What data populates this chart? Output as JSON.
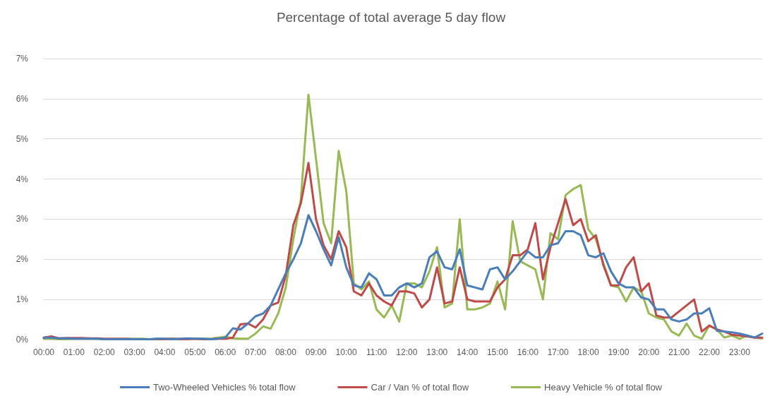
{
  "chart_data": {
    "type": "line",
    "title": "Percentage of total average 5 day flow",
    "categories": [
      "00:00",
      null,
      null,
      null,
      "01:00",
      null,
      null,
      null,
      "02:00",
      null,
      null,
      null,
      "03:00",
      null,
      null,
      null,
      "04:00",
      null,
      null,
      null,
      "05:00",
      null,
      null,
      null,
      "06:00",
      null,
      null,
      null,
      "07:00",
      null,
      null,
      null,
      "08:00",
      null,
      null,
      null,
      "09:00",
      null,
      null,
      null,
      "10:00",
      null,
      null,
      null,
      "11:00",
      null,
      null,
      null,
      "12:00",
      null,
      null,
      null,
      "13:00",
      null,
      null,
      null,
      "14:00",
      null,
      null,
      null,
      "15:00",
      null,
      null,
      null,
      "16:00",
      null,
      null,
      null,
      "17:00",
      null,
      null,
      null,
      "18:00",
      null,
      null,
      null,
      "19:00",
      null,
      null,
      null,
      "20:00",
      null,
      null,
      null,
      "21:00",
      null,
      null,
      null,
      "22:00",
      null,
      null,
      null,
      "23:00",
      null,
      null,
      null
    ],
    "series": [
      {
        "name": "Two-Wheeled Vehicles % total flow",
        "color": "#4a7ebb",
        "values": [
          0.05,
          0.05,
          0.03,
          0.03,
          0.02,
          0.02,
          0.02,
          0.02,
          0.01,
          0.01,
          0.01,
          0.01,
          0.01,
          0.01,
          0.01,
          0.02,
          0.02,
          0.01,
          0.02,
          0.03,
          0.02,
          0.02,
          0.01,
          0.02,
          0.05,
          0.28,
          0.25,
          0.4,
          0.58,
          0.65,
          0.85,
          1.25,
          1.65,
          2.0,
          2.4,
          3.1,
          2.7,
          2.25,
          1.85,
          2.55,
          1.8,
          1.35,
          1.3,
          1.65,
          1.5,
          1.1,
          1.1,
          1.3,
          1.4,
          1.3,
          1.4,
          2.05,
          2.2,
          1.8,
          1.75,
          2.25,
          1.35,
          1.3,
          1.25,
          1.75,
          1.8,
          1.5,
          1.7,
          1.95,
          2.2,
          2.05,
          2.05,
          2.35,
          2.4,
          2.7,
          2.7,
          2.6,
          2.1,
          2.05,
          2.15,
          1.7,
          1.4,
          1.3,
          1.3,
          1.05,
          1.0,
          0.75,
          0.75,
          0.5,
          0.45,
          0.5,
          0.65,
          0.65,
          0.78,
          0.22,
          0.2,
          0.18,
          0.15,
          0.1,
          0.05,
          0.15
        ]
      },
      {
        "name": "Car / Van % of total flow",
        "color": "#be4b48",
        "values": [
          0.05,
          0.08,
          0.03,
          0.04,
          0.04,
          0.04,
          0.03,
          0.03,
          0.02,
          0.02,
          0.02,
          0.02,
          0.01,
          0.01,
          0.01,
          0.01,
          0.01,
          0.02,
          0.01,
          0.01,
          0.02,
          0.01,
          0.01,
          0.02,
          0.02,
          0.05,
          0.38,
          0.4,
          0.3,
          0.5,
          0.85,
          0.92,
          1.6,
          2.85,
          3.4,
          4.4,
          3.0,
          2.35,
          2.0,
          2.7,
          2.3,
          1.2,
          1.1,
          1.4,
          1.1,
          0.95,
          0.85,
          1.2,
          1.2,
          1.15,
          0.8,
          1.0,
          1.8,
          0.9,
          0.95,
          1.8,
          1.0,
          0.95,
          0.95,
          0.95,
          1.3,
          1.5,
          2.1,
          2.1,
          2.25,
          2.9,
          1.5,
          2.3,
          2.9,
          3.5,
          2.85,
          3.0,
          2.45,
          2.6,
          1.85,
          1.35,
          1.35,
          1.8,
          2.05,
          1.2,
          1.4,
          0.6,
          0.55,
          0.55,
          0.7,
          0.85,
          1.0,
          0.2,
          0.35,
          0.25,
          0.2,
          0.12,
          0.1,
          0.08,
          0.05,
          0.05
        ]
      },
      {
        "name": "Heavy Vehicle % of total flow",
        "color": "#98b954",
        "values": [
          0.02,
          0.02,
          0.01,
          0.01,
          0.02,
          0.02,
          0.02,
          0.02,
          0.01,
          0.01,
          0.01,
          0.01,
          0.02,
          0.02,
          0.01,
          0.02,
          0.02,
          0.02,
          0.01,
          0.02,
          0.02,
          0.02,
          0.02,
          0.05,
          0.07,
          0.03,
          0.02,
          0.02,
          0.15,
          0.33,
          0.27,
          0.65,
          1.3,
          2.5,
          3.5,
          6.1,
          4.5,
          2.9,
          2.4,
          4.7,
          3.7,
          1.4,
          1.25,
          1.45,
          0.75,
          0.55,
          0.85,
          0.45,
          1.4,
          1.4,
          1.3,
          1.7,
          2.3,
          0.8,
          0.9,
          3.0,
          0.75,
          0.75,
          0.8,
          0.9,
          1.45,
          0.75,
          2.95,
          1.95,
          1.85,
          1.75,
          1.0,
          2.65,
          2.5,
          3.6,
          3.75,
          3.85,
          2.75,
          2.5,
          1.9,
          1.35,
          1.3,
          0.95,
          1.3,
          1.2,
          0.65,
          0.55,
          0.5,
          0.2,
          0.1,
          0.4,
          0.1,
          0.02,
          0.35,
          0.25,
          0.05,
          0.1,
          0.02,
          0.1,
          0.05,
          0.03
        ]
      }
    ],
    "ylim": [
      0,
      7
    ],
    "yticks": [
      {
        "value": 0,
        "label": "0%"
      },
      {
        "value": 1,
        "label": "1%"
      },
      {
        "value": 2,
        "label": "2%"
      },
      {
        "value": 3,
        "label": "3%"
      },
      {
        "value": 4,
        "label": "4%"
      },
      {
        "value": 5,
        "label": "5%"
      },
      {
        "value": 6,
        "label": "6%"
      },
      {
        "value": 7,
        "label": "7%"
      }
    ],
    "grid": "y",
    "legend": "bottom",
    "marker": "none",
    "line_style": "solid"
  }
}
